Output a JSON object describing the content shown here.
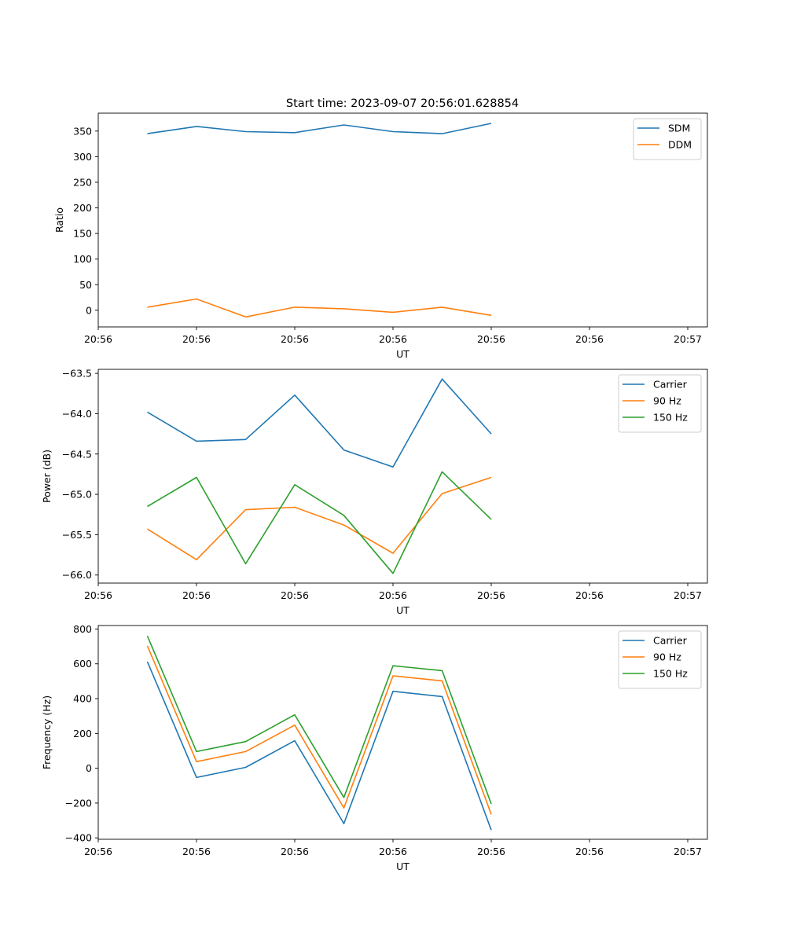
{
  "figure": {
    "title": "Start time: 2023-09-07 20:56:01.628854"
  },
  "chart_data": [
    {
      "type": "line",
      "ylabel": "Ratio",
      "xlabel": "UT",
      "xlim": [
        0,
        12.4
      ],
      "ylim": [
        -32.5,
        385
      ],
      "x": [
        1,
        2,
        3,
        4,
        5,
        6,
        7,
        8
      ],
      "xticks": [
        0,
        2,
        4,
        6,
        8,
        10,
        12
      ],
      "xticklabels": [
        "20:56",
        "20:56",
        "20:56",
        "20:56",
        "20:56",
        "20:56",
        "20:57"
      ],
      "yticks": [
        0,
        50,
        100,
        150,
        200,
        250,
        300,
        350
      ],
      "yticklabels": [
        "0",
        "50",
        "100",
        "150",
        "200",
        "250",
        "300",
        "350"
      ],
      "legend_loc": "upper right",
      "series": [
        {
          "name": "SDM",
          "color": "#1f77b4",
          "values": [
            345,
            359,
            349,
            347,
            362,
            349,
            345,
            365
          ]
        },
        {
          "name": "DDM",
          "color": "#ff7f0e",
          "values": [
            6,
            22,
            -13,
            6,
            3,
            -4,
            6,
            -10
          ]
        }
      ]
    },
    {
      "type": "line",
      "ylabel": "Power (dB)",
      "xlabel": "UT",
      "xlim": [
        0,
        12.4
      ],
      "ylim": [
        -66.1,
        -63.45
      ],
      "x": [
        1,
        2,
        3,
        4,
        5,
        6,
        7,
        8
      ],
      "xticks": [
        0,
        2,
        4,
        6,
        8,
        10,
        12
      ],
      "xticklabels": [
        "20:56",
        "20:56",
        "20:56",
        "20:56",
        "20:56",
        "20:56",
        "20:57"
      ],
      "yticks": [
        -66.0,
        -65.5,
        -65.0,
        -64.5,
        -64.0,
        -63.5
      ],
      "yticklabels": [
        "−66.0",
        "−65.5",
        "−65.0",
        "−64.5",
        "−64.0",
        "−63.5"
      ],
      "legend_loc": "upper right",
      "series": [
        {
          "name": "Carrier",
          "color": "#1f77b4",
          "values": [
            -63.98,
            -64.34,
            -64.32,
            -63.77,
            -64.45,
            -64.66,
            -63.57,
            -64.25
          ]
        },
        {
          "name": "90 Hz",
          "color": "#ff7f0e",
          "values": [
            -65.43,
            -65.81,
            -65.19,
            -65.16,
            -65.38,
            -65.73,
            -64.99,
            -64.79
          ]
        },
        {
          "name": "150 Hz",
          "color": "#2ca02c",
          "values": [
            -65.15,
            -64.79,
            -65.86,
            -64.88,
            -65.26,
            -65.98,
            -64.72,
            -65.31
          ]
        }
      ]
    },
    {
      "type": "line",
      "ylabel": "Frequency (Hz)",
      "xlabel": "UT",
      "xlim": [
        0,
        12.4
      ],
      "ylim": [
        -408,
        820
      ],
      "x": [
        1,
        2,
        3,
        4,
        5,
        6,
        7,
        8
      ],
      "xticks": [
        0,
        2,
        4,
        6,
        8,
        10,
        12
      ],
      "xticklabels": [
        "20:56",
        "20:56",
        "20:56",
        "20:56",
        "20:56",
        "20:56",
        "20:57"
      ],
      "yticks": [
        -400,
        -200,
        0,
        200,
        400,
        600,
        800
      ],
      "yticklabels": [
        "−400",
        "−200",
        "0",
        "200",
        "400",
        "600",
        "800"
      ],
      "legend_loc": "upper right",
      "series": [
        {
          "name": "Carrier",
          "color": "#1f77b4",
          "values": [
            612,
            -53,
            5,
            158,
            -318,
            442,
            412,
            -355
          ]
        },
        {
          "name": "90 Hz",
          "color": "#ff7f0e",
          "values": [
            703,
            38,
            96,
            248,
            -228,
            531,
            502,
            -265
          ]
        },
        {
          "name": "150 Hz",
          "color": "#2ca02c",
          "values": [
            760,
            96,
            153,
            307,
            -168,
            589,
            561,
            -205
          ]
        }
      ]
    }
  ]
}
